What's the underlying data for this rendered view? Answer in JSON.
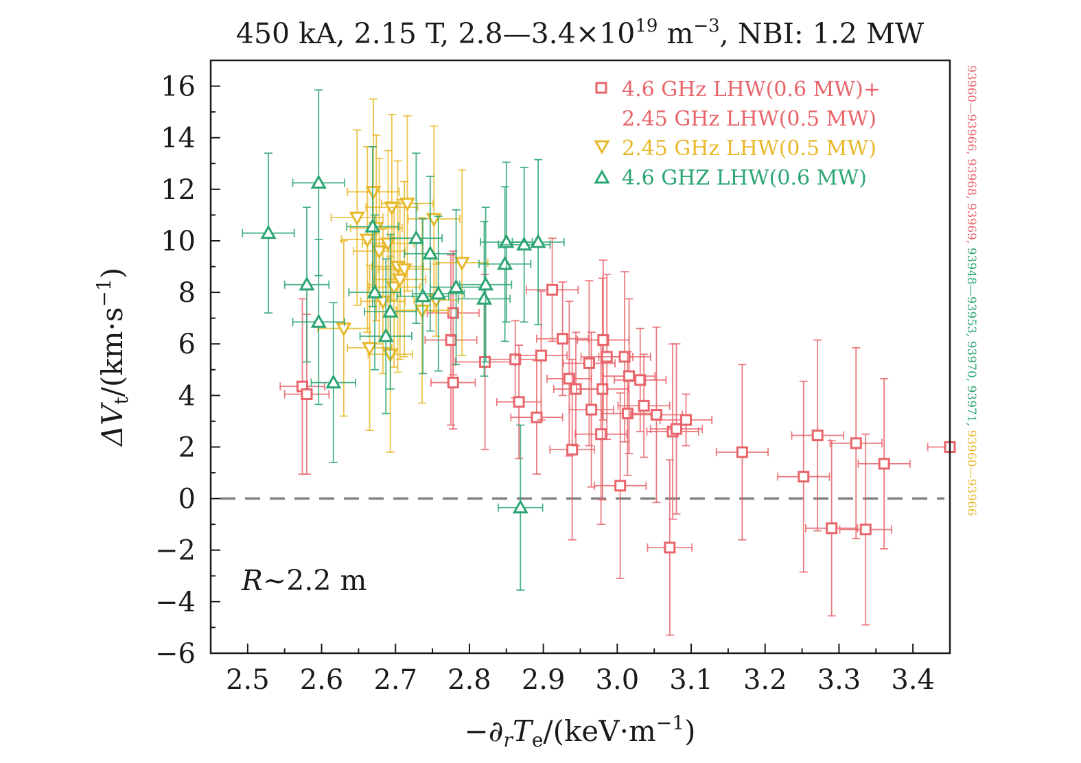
{
  "chart_data": {
    "type": "scatter",
    "title": {
      "main": "450 kA, 2.15 T, 2.8—3.4×10",
      "sup": "19",
      "mid": " m",
      "sup2": "−3",
      "end": ", NBI: 1.2 MW"
    },
    "xlabel": {
      "a": "−∂",
      "b": "r",
      "c": "T",
      "d": "e",
      "e": "/(keV·m",
      "f": "−1",
      "g": ")"
    },
    "ylabel": {
      "a": "ΔV",
      "b": "t",
      "c": "/(km·s",
      "d": "−1",
      "e": ")"
    },
    "xlim": [
      2.45,
      3.45
    ],
    "ylim": [
      -6,
      17
    ],
    "x_ticks": [
      "2.5",
      "2.6",
      "2.7",
      "2.8",
      "2.9",
      "3.0",
      "3.1",
      "3.2",
      "3.3",
      "3.4"
    ],
    "y_ticks": [
      "−6",
      "−4",
      "−2",
      "0",
      "2",
      "4",
      "6",
      "8",
      "10",
      "12",
      "14",
      "16"
    ],
    "annotation": {
      "italic": "R",
      "rest": "∼2.2 m"
    },
    "reference_line": {
      "y": 0,
      "style": "dashed",
      "color": "#808080"
    },
    "legend": {
      "placement": "top-right",
      "entries": [
        {
          "line1": "4.6 GHz LHW(0.6 MW)+",
          "line2": "2.45 GHz LHW(0.5 MW)",
          "color": "#e8646a",
          "marker": "square"
        },
        {
          "line1": "2.45 GHz LHW(0.5 MW)",
          "color": "#e8b82a",
          "marker": "triangle-down"
        },
        {
          "line1": "4.6 GHZ LHW(0.6 MW)",
          "color": "#2aa572",
          "marker": "triangle-up"
        }
      ]
    },
    "side_labels": [
      {
        "text": "93960—93966, 93968, 93969, ",
        "color": "#e8646a"
      },
      {
        "text": "93948—93953, 93970, 93971, ",
        "color": "#2aa572"
      },
      {
        "text": "93960—93966",
        "color": "#e8b82a"
      }
    ],
    "series": [
      {
        "name": "4.6 GHz LHW(0.6 MW)+2.45 GHz LHW(0.5 MW)",
        "color": "#e8646a",
        "marker": "square",
        "points": [
          [
            2.574,
            4.35,
            0.03,
            3.4
          ],
          [
            2.58,
            4.05,
            0.03,
            3.1
          ],
          [
            2.778,
            7.2,
            0.035,
            2.4
          ],
          [
            2.775,
            6.15,
            0.035,
            3.3
          ],
          [
            2.778,
            4.5,
            0.03,
            1.8
          ],
          [
            2.821,
            5.3,
            0.04,
            3.4
          ],
          [
            2.862,
            5.4,
            0.035,
            1.5
          ],
          [
            2.867,
            3.75,
            0.03,
            2.2
          ],
          [
            2.891,
            3.15,
            0.035,
            2.2
          ],
          [
            2.897,
            5.55,
            0.035,
            2.5
          ],
          [
            2.912,
            8.1,
            0.035,
            2.0
          ],
          [
            2.926,
            6.2,
            0.035,
            2.2
          ],
          [
            2.935,
            4.65,
            0.03,
            3.0
          ],
          [
            2.939,
            1.9,
            0.03,
            3.5
          ],
          [
            2.944,
            4.25,
            0.03,
            2.2
          ],
          [
            2.962,
            5.25,
            0.035,
            3.2
          ],
          [
            2.965,
            3.45,
            0.03,
            3.0
          ],
          [
            2.978,
            2.5,
            0.035,
            3.5
          ],
          [
            2.98,
            4.25,
            0.035,
            4.3
          ],
          [
            2.981,
            6.15,
            0.035,
            3.1
          ],
          [
            2.986,
            5.5,
            0.035,
            3.2
          ],
          [
            3.004,
            0.5,
            0.035,
            3.6
          ],
          [
            3.01,
            5.5,
            0.035,
            3.3
          ],
          [
            3.014,
            3.3,
            0.035,
            2.4
          ],
          [
            3.016,
            4.75,
            0.035,
            3.0
          ],
          [
            3.031,
            4.6,
            0.035,
            2.0
          ],
          [
            3.036,
            3.6,
            0.035,
            2.0
          ],
          [
            3.053,
            3.25,
            0.035,
            3.4
          ],
          [
            3.071,
            -1.9,
            0.03,
            3.4
          ],
          [
            3.075,
            2.6,
            0.035,
            3.4
          ],
          [
            3.08,
            2.7,
            0.035,
            3.3
          ],
          [
            3.093,
            3.05,
            0.035,
            1.0
          ],
          [
            3.169,
            1.8,
            0.035,
            3.4
          ],
          [
            3.252,
            0.85,
            0.035,
            3.7
          ],
          [
            3.271,
            2.45,
            0.035,
            3.7
          ],
          [
            3.29,
            -1.15,
            0.035,
            3.4
          ],
          [
            3.323,
            2.15,
            0.035,
            3.7
          ],
          [
            3.336,
            -1.2,
            0.035,
            3.7
          ],
          [
            3.361,
            1.35,
            0.035,
            3.3
          ],
          [
            3.45,
            2.0,
            0.03,
            0.01
          ]
        ]
      },
      {
        "name": "2.45 GHz LHW(0.5 MW)",
        "color": "#e8b82a",
        "marker": "triangle-down",
        "points": [
          [
            2.63,
            6.6,
            0.035,
            3.4
          ],
          [
            2.648,
            10.9,
            0.035,
            3.4
          ],
          [
            2.662,
            10.05,
            0.035,
            3.6
          ],
          [
            2.665,
            5.85,
            0.03,
            3.2
          ],
          [
            2.67,
            11.9,
            0.035,
            3.6
          ],
          [
            2.674,
            10.5,
            0.035,
            3.6
          ],
          [
            2.678,
            9.6,
            0.035,
            3.6
          ],
          [
            2.683,
            7.65,
            0.03,
            2.8
          ],
          [
            2.69,
            9.9,
            0.035,
            3.6
          ],
          [
            2.693,
            5.6,
            0.03,
            3.8
          ],
          [
            2.695,
            11.3,
            0.035,
            3.6
          ],
          [
            2.698,
            8.2,
            0.035,
            3.1
          ],
          [
            2.703,
            9.0,
            0.035,
            4.1
          ],
          [
            2.706,
            8.5,
            0.035,
            3.1
          ],
          [
            2.712,
            8.9,
            0.035,
            3.4
          ],
          [
            2.716,
            11.45,
            0.035,
            3.4
          ],
          [
            2.736,
            7.3,
            0.035,
            3.6
          ],
          [
            2.752,
            10.85,
            0.035,
            3.6
          ],
          [
            2.755,
            7.7,
            0.03,
            1.4
          ],
          [
            2.79,
            9.15,
            0.035,
            3.6
          ]
        ]
      },
      {
        "name": "4.6 GHZ LHW(0.6 MW)",
        "color": "#2aa572",
        "marker": "triangle-up",
        "points": [
          [
            2.528,
            10.3,
            0.035,
            3.1
          ],
          [
            2.58,
            8.3,
            0.03,
            3.0
          ],
          [
            2.596,
            6.85,
            0.035,
            3.2
          ],
          [
            2.596,
            12.25,
            0.035,
            3.6
          ],
          [
            2.616,
            4.5,
            0.03,
            3.1
          ],
          [
            2.669,
            10.55,
            0.035,
            3.1
          ],
          [
            2.672,
            8.0,
            0.035,
            3.0
          ],
          [
            2.687,
            6.3,
            0.035,
            3.0
          ],
          [
            2.693,
            7.25,
            0.035,
            3.0
          ],
          [
            2.728,
            10.1,
            0.035,
            3.3
          ],
          [
            2.737,
            7.85,
            0.035,
            3.0
          ],
          [
            2.747,
            9.5,
            0.035,
            3.0
          ],
          [
            2.758,
            7.95,
            0.035,
            3.0
          ],
          [
            2.782,
            8.2,
            0.035,
            3.0
          ],
          [
            2.82,
            7.75,
            0.035,
            3.0
          ],
          [
            2.822,
            8.3,
            0.035,
            3.0
          ],
          [
            2.848,
            9.1,
            0.035,
            3.0
          ],
          [
            2.85,
            9.95,
            0.035,
            3.1
          ],
          [
            2.869,
            -0.35,
            0.03,
            3.2
          ],
          [
            2.874,
            9.85,
            0.035,
            3.0
          ],
          [
            2.893,
            9.95,
            0.035,
            3.2
          ]
        ]
      }
    ],
    "point_format": [
      "x",
      "y",
      "x_err",
      "y_err"
    ]
  }
}
